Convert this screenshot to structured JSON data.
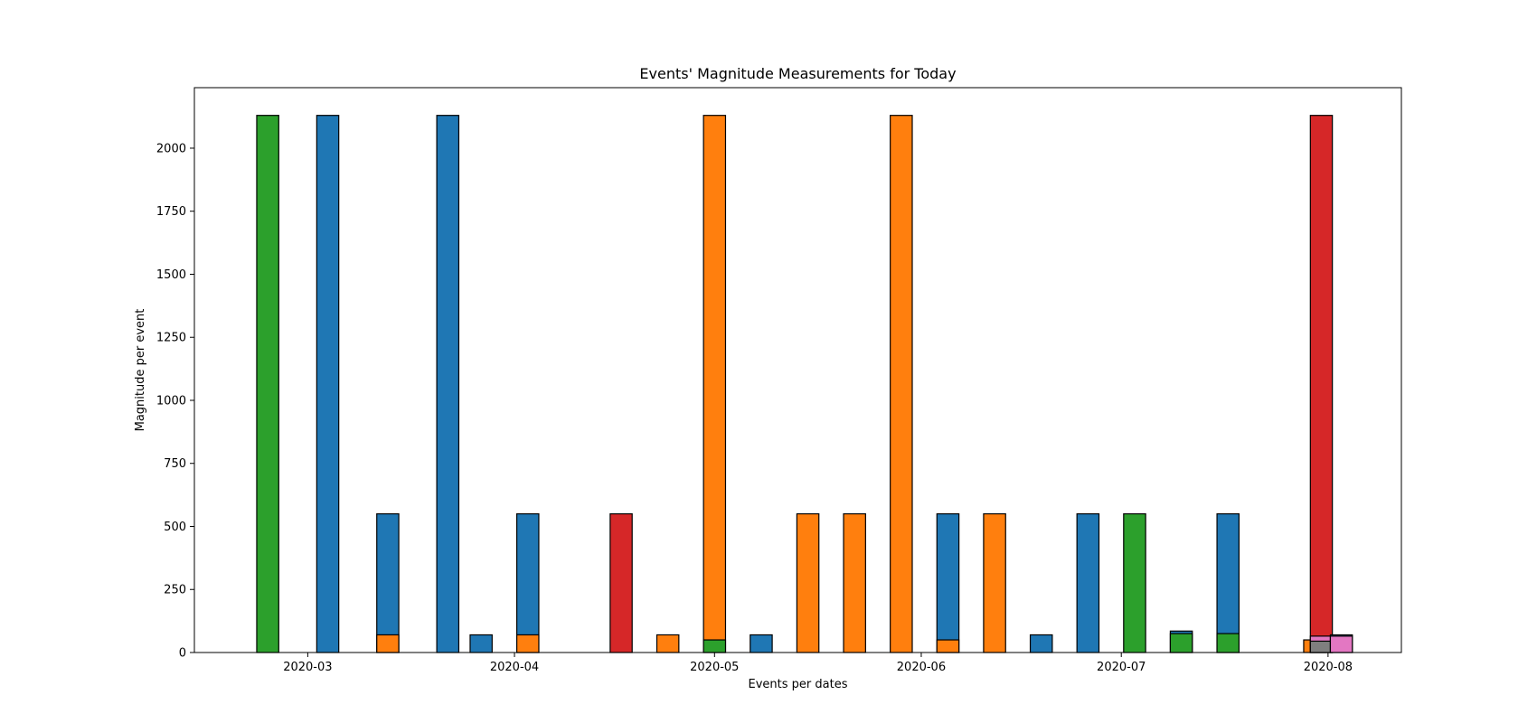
{
  "chart_data": {
    "type": "bar",
    "title": "Events' Magnitude Measurements for Today",
    "xlabel": "Events per dates",
    "ylabel": "Magnitude per event",
    "xlim": [
      "2020-02-13",
      "2020-08-12"
    ],
    "ylim": [
      0,
      2240
    ],
    "x_ticks": [
      "2020-03",
      "2020-04",
      "2020-05",
      "2020-06",
      "2020-07",
      "2020-08"
    ],
    "y_ticks": [
      0,
      250,
      500,
      750,
      1000,
      1250,
      1500,
      1750,
      2000
    ],
    "grid": false,
    "legend": "none",
    "bar_width_days": 3.3,
    "colors": {
      "blue": "#1f77b4",
      "orange": "#ff7f0e",
      "green": "#2ca02c",
      "red": "#d62728",
      "gray": "#7f7f7f",
      "pink": "#e377c2"
    },
    "bars": [
      {
        "date": "2020-02-24",
        "value": 2130,
        "color": "green"
      },
      {
        "date": "2020-03-04",
        "value": 2130,
        "color": "blue"
      },
      {
        "date": "2020-03-13",
        "value": 550,
        "color": "blue"
      },
      {
        "date": "2020-03-13",
        "value": 70,
        "color": "orange"
      },
      {
        "date": "2020-03-22",
        "value": 2130,
        "color": "blue"
      },
      {
        "date": "2020-03-27",
        "value": 70,
        "color": "blue"
      },
      {
        "date": "2020-04-03",
        "value": 550,
        "color": "blue"
      },
      {
        "date": "2020-04-03",
        "value": 70,
        "color": "orange"
      },
      {
        "date": "2020-04-17",
        "value": 550,
        "color": "red"
      },
      {
        "date": "2020-04-24",
        "value": 70,
        "color": "orange"
      },
      {
        "date": "2020-05-01",
        "value": 2130,
        "color": "orange"
      },
      {
        "date": "2020-05-01",
        "value": 50,
        "color": "green"
      },
      {
        "date": "2020-05-08",
        "value": 70,
        "color": "blue"
      },
      {
        "date": "2020-05-15",
        "value": 550,
        "color": "orange"
      },
      {
        "date": "2020-05-22",
        "value": 550,
        "color": "orange"
      },
      {
        "date": "2020-05-29",
        "value": 2130,
        "color": "orange"
      },
      {
        "date": "2020-06-05",
        "value": 550,
        "color": "blue"
      },
      {
        "date": "2020-06-05",
        "value": 50,
        "color": "orange"
      },
      {
        "date": "2020-06-12",
        "value": 550,
        "color": "orange"
      },
      {
        "date": "2020-06-19",
        "value": 70,
        "color": "blue"
      },
      {
        "date": "2020-06-26",
        "value": 550,
        "color": "blue"
      },
      {
        "date": "2020-07-03",
        "value": 550,
        "color": "green"
      },
      {
        "date": "2020-07-10",
        "value": 85,
        "color": "blue"
      },
      {
        "date": "2020-07-10",
        "value": 75,
        "color": "green"
      },
      {
        "date": "2020-07-17",
        "value": 550,
        "color": "blue"
      },
      {
        "date": "2020-07-17",
        "value": 75,
        "color": "green"
      },
      {
        "date": "2020-07-30",
        "value": 50,
        "color": "orange"
      },
      {
        "date": "2020-07-31",
        "value": 2130,
        "color": "red"
      },
      {
        "date": "2020-07-31",
        "value": 65,
        "color": "pink"
      },
      {
        "date": "2020-07-31",
        "value": 45,
        "color": "gray"
      },
      {
        "date": "2020-08-03",
        "value": 70,
        "color": "blue"
      },
      {
        "date": "2020-08-03",
        "value": 65,
        "color": "pink"
      }
    ]
  }
}
